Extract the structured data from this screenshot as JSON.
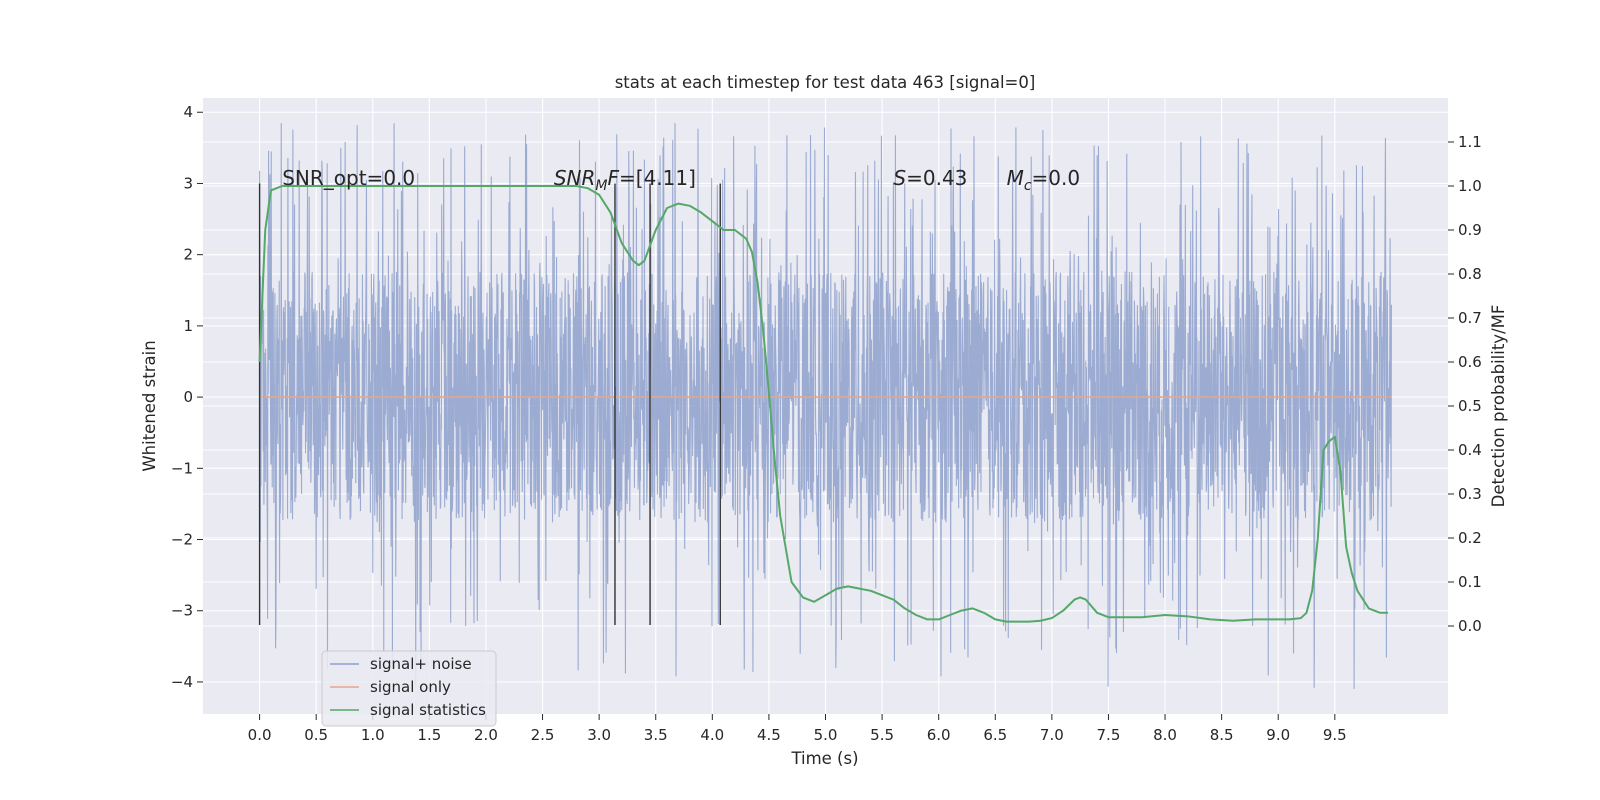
{
  "chart_data": {
    "type": "line",
    "title": "stats at each timestep for test data 463 [signal=0]",
    "xlabel": "Time (s)",
    "ylabel": "Whitened strain",
    "y2label": "Detection probability/MF",
    "xlim": [
      -0.5,
      10.5
    ],
    "ylim": [
      -4.45,
      4.2
    ],
    "y2lim": [
      -0.2,
      1.2
    ],
    "xticks": [
      "0.0",
      "0.5",
      "1.0",
      "1.5",
      "2.0",
      "2.5",
      "3.0",
      "3.5",
      "4.0",
      "4.5",
      "5.0",
      "5.5",
      "6.0",
      "6.5",
      "7.0",
      "7.5",
      "8.0",
      "8.5",
      "9.0",
      "9.5"
    ],
    "yticks": [
      "−4",
      "−3",
      "−2",
      "−1",
      "0",
      "1",
      "2",
      "3",
      "4"
    ],
    "y2ticks": [
      "0.0",
      "0.1",
      "0.2",
      "0.3",
      "0.4",
      "0.5",
      "0.6",
      "0.7",
      "0.8",
      "0.9",
      "1.0",
      "1.1"
    ],
    "grid": true,
    "background": "#eaeaf2",
    "annotations": [
      {
        "prefix": "SNR_opt=",
        "value": "0.0",
        "x": 0.2
      },
      {
        "symbol": "SNR",
        "sub": "M",
        "mid": "F",
        "value": "=[4.11]",
        "x": 2.6
      },
      {
        "symbol": "S",
        "value": "=0.43",
        "x": 5.6
      },
      {
        "symbol": "M",
        "sub": "c",
        "value": "=0.0",
        "x": 6.6
      }
    ],
    "vertical_markers": {
      "x": [
        0.0,
        3.14,
        3.45,
        4.07
      ],
      "ymin": -3.2,
      "ymax": 3.0,
      "color": "#333333"
    },
    "noise": {
      "t_start": 0.0,
      "t_end": 10.0,
      "core_sigma": 1.1,
      "peak_min": 1.7,
      "peak_max": 3.85,
      "trough_min": -1.2,
      "trough_max": -4.1
    },
    "series": [
      {
        "name": "signal+ noise",
        "color": "#8da0cb",
        "axis": "left",
        "style": "dense-noise"
      },
      {
        "name": "signal only",
        "color": "#e5a68a",
        "axis": "left",
        "x": [
          0.0,
          10.0
        ],
        "y": [
          0.0,
          0.0
        ]
      },
      {
        "name": "signal statistics",
        "color": "#55a868",
        "axis": "right",
        "x": [
          0.0,
          0.05,
          0.1,
          0.15,
          0.2,
          0.3,
          0.5,
          1.0,
          2.0,
          2.6,
          2.8,
          2.9,
          3.0,
          3.1,
          3.2,
          3.3,
          3.35,
          3.4,
          3.5,
          3.6,
          3.7,
          3.8,
          3.9,
          4.0,
          4.1,
          4.2,
          4.3,
          4.35,
          4.4,
          4.45,
          4.5,
          4.55,
          4.6,
          4.7,
          4.8,
          4.9,
          5.0,
          5.1,
          5.2,
          5.3,
          5.4,
          5.5,
          5.6,
          5.7,
          5.8,
          5.9,
          6.0,
          6.1,
          6.2,
          6.3,
          6.4,
          6.5,
          6.6,
          6.7,
          6.8,
          6.9,
          7.0,
          7.1,
          7.2,
          7.25,
          7.3,
          7.4,
          7.5,
          7.6,
          7.8,
          8.0,
          8.2,
          8.4,
          8.6,
          8.8,
          9.0,
          9.1,
          9.2,
          9.25,
          9.3,
          9.35,
          9.4,
          9.45,
          9.5,
          9.55,
          9.6,
          9.65,
          9.7,
          9.8,
          9.9,
          9.97
        ],
        "y": [
          0.6,
          0.9,
          0.99,
          0.995,
          1.0,
          1.0,
          1.0,
          1.0,
          1.0,
          1.0,
          1.0,
          0.995,
          0.98,
          0.94,
          0.87,
          0.83,
          0.82,
          0.83,
          0.9,
          0.95,
          0.96,
          0.955,
          0.94,
          0.92,
          0.9,
          0.9,
          0.88,
          0.85,
          0.78,
          0.67,
          0.53,
          0.38,
          0.25,
          0.1,
          0.065,
          0.055,
          0.07,
          0.085,
          0.09,
          0.085,
          0.08,
          0.07,
          0.06,
          0.04,
          0.025,
          0.015,
          0.015,
          0.025,
          0.035,
          0.04,
          0.03,
          0.015,
          0.01,
          0.01,
          0.01,
          0.012,
          0.018,
          0.035,
          0.06,
          0.065,
          0.06,
          0.03,
          0.02,
          0.02,
          0.02,
          0.025,
          0.022,
          0.015,
          0.012,
          0.015,
          0.015,
          0.015,
          0.018,
          0.03,
          0.08,
          0.2,
          0.4,
          0.42,
          0.43,
          0.35,
          0.18,
          0.12,
          0.08,
          0.04,
          0.03,
          0.03
        ]
      }
    ],
    "legend": {
      "position": "lower-left",
      "entries": [
        "signal+ noise",
        "signal only",
        "signal statistics"
      ]
    }
  }
}
